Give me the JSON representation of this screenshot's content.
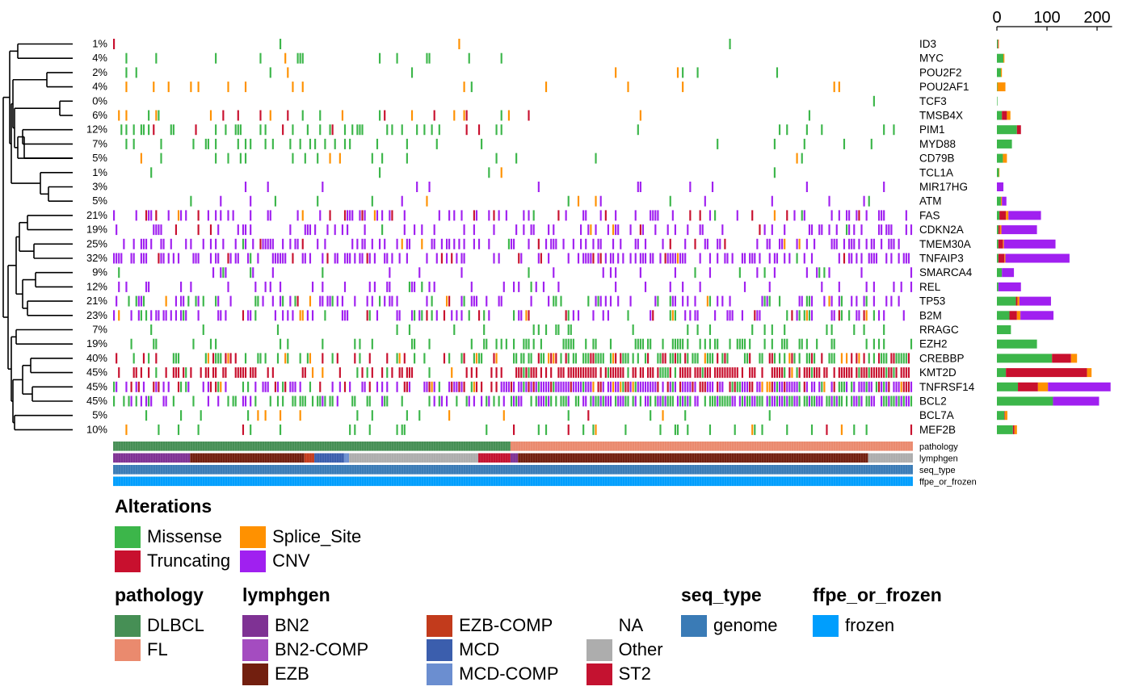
{
  "chart_data": {
    "type": "oncoplot",
    "n_samples": 322,
    "genes": [
      {
        "name": "ID3",
        "pct": "1%",
        "counts": {
          "Missense": 2,
          "Truncating": 1,
          "Splice_Site": 1,
          "CNV": 0
        }
      },
      {
        "name": "MYC",
        "pct": "4%",
        "counts": {
          "Missense": 13,
          "Truncating": 0,
          "Splice_Site": 2,
          "CNV": 0
        }
      },
      {
        "name": "POU2F2",
        "pct": "2%",
        "counts": {
          "Missense": 8,
          "Truncating": 0,
          "Splice_Site": 2,
          "CNV": 0
        }
      },
      {
        "name": "POU2AF1",
        "pct": "4%",
        "counts": {
          "Missense": 1,
          "Truncating": 0,
          "Splice_Site": 16,
          "CNV": 0
        }
      },
      {
        "name": "TCF3",
        "pct": "0%",
        "counts": {
          "Missense": 1,
          "Truncating": 0,
          "Splice_Site": 0,
          "CNV": 0
        }
      },
      {
        "name": "TMSB4X",
        "pct": "6%",
        "counts": {
          "Missense": 10,
          "Truncating": 10,
          "Splice_Site": 7,
          "CNV": 0
        }
      },
      {
        "name": "PIM1",
        "pct": "12%",
        "counts": {
          "Missense": 40,
          "Truncating": 8,
          "Splice_Site": 0,
          "CNV": 0
        }
      },
      {
        "name": "MYD88",
        "pct": "7%",
        "counts": {
          "Missense": 30,
          "Truncating": 0,
          "Splice_Site": 0,
          "CNV": 0
        }
      },
      {
        "name": "CD79B",
        "pct": "5%",
        "counts": {
          "Missense": 12,
          "Truncating": 0,
          "Splice_Site": 8,
          "CNV": 0
        }
      },
      {
        "name": "TCL1A",
        "pct": "1%",
        "counts": {
          "Missense": 4,
          "Truncating": 0,
          "Splice_Site": 1,
          "CNV": 0
        }
      },
      {
        "name": "MIR17HG",
        "pct": "3%",
        "counts": {
          "Missense": 0,
          "Truncating": 0,
          "Splice_Site": 0,
          "CNV": 13
        }
      },
      {
        "name": "ATM",
        "pct": "5%",
        "counts": {
          "Missense": 8,
          "Truncating": 0,
          "Splice_Site": 2,
          "CNV": 9
        }
      },
      {
        "name": "FAS",
        "pct": "21%",
        "counts": {
          "Missense": 5,
          "Truncating": 13,
          "Splice_Site": 5,
          "CNV": 65
        }
      },
      {
        "name": "CDKN2A",
        "pct": "19%",
        "counts": {
          "Missense": 3,
          "Truncating": 3,
          "Splice_Site": 3,
          "CNV": 71
        }
      },
      {
        "name": "TMEM30A",
        "pct": "25%",
        "counts": {
          "Missense": 3,
          "Truncating": 9,
          "Splice_Site": 2,
          "CNV": 103
        }
      },
      {
        "name": "TNFAIP3",
        "pct": "32%",
        "counts": {
          "Missense": 3,
          "Truncating": 12,
          "Splice_Site": 2,
          "CNV": 128
        }
      },
      {
        "name": "SMARCA4",
        "pct": "9%",
        "counts": {
          "Missense": 10,
          "Truncating": 0,
          "Splice_Site": 0,
          "CNV": 24
        }
      },
      {
        "name": "REL",
        "pct": "12%",
        "counts": {
          "Missense": 3,
          "Truncating": 0,
          "Splice_Site": 0,
          "CNV": 45
        }
      },
      {
        "name": "TP53",
        "pct": "21%",
        "counts": {
          "Missense": 38,
          "Truncating": 3,
          "Splice_Site": 4,
          "CNV": 63
        }
      },
      {
        "name": "B2M",
        "pct": "23%",
        "counts": {
          "Missense": 25,
          "Truncating": 15,
          "Splice_Site": 7,
          "CNV": 66
        }
      },
      {
        "name": "RRAGC",
        "pct": "7%",
        "counts": {
          "Missense": 28,
          "Truncating": 0,
          "Splice_Site": 0,
          "CNV": 0
        }
      },
      {
        "name": "EZH2",
        "pct": "19%",
        "counts": {
          "Missense": 80,
          "Truncating": 0,
          "Splice_Site": 0,
          "CNV": 0
        }
      },
      {
        "name": "CREBBP",
        "pct": "40%",
        "counts": {
          "Missense": 110,
          "Truncating": 38,
          "Splice_Site": 12,
          "CNV": 0
        }
      },
      {
        "name": "KMT2D",
        "pct": "45%",
        "counts": {
          "Missense": 18,
          "Truncating": 162,
          "Splice_Site": 9,
          "CNV": 0
        }
      },
      {
        "name": "TNFRSF14",
        "pct": "45%",
        "counts": {
          "Missense": 42,
          "Truncating": 40,
          "Splice_Site": 20,
          "CNV": 125
        }
      },
      {
        "name": "BCL2",
        "pct": "45%",
        "counts": {
          "Missense": 112,
          "Truncating": 0,
          "Splice_Site": 0,
          "CNV": 92
        }
      },
      {
        "name": "BCL7A",
        "pct": "5%",
        "counts": {
          "Missense": 15,
          "Truncating": 1,
          "Splice_Site": 5,
          "CNV": 0
        }
      },
      {
        "name": "MEF2B",
        "pct": "10%",
        "counts": {
          "Missense": 32,
          "Truncating": 3,
          "Splice_Site": 5,
          "CNV": 0
        }
      }
    ],
    "bar_axis": {
      "ticks": [
        0,
        100,
        200
      ],
      "max": 230
    },
    "alteration_colors": {
      "Missense": "#3cb64a",
      "Truncating": "#c8102e",
      "Splice_Site": "#ff9100",
      "CNV": "#a020f0"
    },
    "annotation_tracks": [
      {
        "name": "pathology",
        "segments": [
          {
            "value": "DLBCL",
            "from": 0,
            "to": 160
          },
          {
            "value": "FL",
            "from": 160,
            "to": 322
          }
        ]
      },
      {
        "name": "lymphgen",
        "segments": [
          {
            "value": "BN2",
            "from": 0,
            "to": 31
          },
          {
            "value": "EZB",
            "from": 31,
            "to": 77
          },
          {
            "value": "EZB-COMP",
            "from": 77,
            "to": 81
          },
          {
            "value": "MCD",
            "from": 81,
            "to": 93
          },
          {
            "value": "MCD-COMP",
            "from": 93,
            "to": 95
          },
          {
            "value": "Other",
            "from": 95,
            "to": 147
          },
          {
            "value": "ST2",
            "from": 147,
            "to": 160
          },
          {
            "value": "BN2",
            "from": 160,
            "to": 163
          },
          {
            "value": "EZB",
            "from": 163,
            "to": 304
          },
          {
            "value": "Other",
            "from": 304,
            "to": 322
          }
        ]
      },
      {
        "name": "seq_type",
        "segments": [
          {
            "value": "genome",
            "from": 0,
            "to": 322
          }
        ]
      },
      {
        "name": "ffpe_or_frozen",
        "segments": [
          {
            "value": "frozen",
            "from": 0,
            "to": 322
          }
        ]
      }
    ],
    "annotation_colors": {
      "DLBCL": "#468f55",
      "FL": "#ea8a6e",
      "BN2": "#7f3294",
      "BN2-COMP": "#a44cc0",
      "EZB": "#721f0f",
      "EZB-COMP": "#c23b1c",
      "MCD": "#3b5ead",
      "MCD-COMP": "#6b8ed0",
      "Other": "#adadad",
      "ST2": "#c41230",
      "genome": "#3a7bb6",
      "frozen": "#009efd"
    }
  },
  "legends": {
    "alterations": {
      "title": "Alterations",
      "items": [
        {
          "label": "Missense",
          "color": "#3cb64a"
        },
        {
          "label": "Splice_Site",
          "color": "#ff9100"
        },
        {
          "label": "Truncating",
          "color": "#c8102e"
        },
        {
          "label": "CNV",
          "color": "#a020f0"
        }
      ]
    },
    "pathology": {
      "title": "pathology",
      "items": [
        {
          "label": "DLBCL",
          "color": "#468f55"
        },
        {
          "label": "FL",
          "color": "#ea8a6e"
        }
      ]
    },
    "lymphgen": {
      "title": "lymphgen",
      "columns": [
        [
          {
            "label": "BN2",
            "color": "#7f3294"
          },
          {
            "label": "BN2-COMP",
            "color": "#a44cc0"
          },
          {
            "label": "EZB",
            "color": "#721f0f"
          }
        ],
        [
          {
            "label": "EZB-COMP",
            "color": "#c23b1c"
          },
          {
            "label": "MCD",
            "color": "#3b5ead"
          },
          {
            "label": "MCD-COMP",
            "color": "#6b8ed0"
          }
        ],
        [
          {
            "label": "NA",
            "color": "#ffffff"
          },
          {
            "label": "Other",
            "color": "#adadad"
          },
          {
            "label": "ST2",
            "color": "#c41230"
          }
        ]
      ]
    },
    "seq_type": {
      "title": "seq_type",
      "items": [
        {
          "label": "genome",
          "color": "#3a7bb6"
        }
      ]
    },
    "ffpe_or_frozen": {
      "title": "ffpe_or_frozen",
      "items": [
        {
          "label": "frozen",
          "color": "#009efd"
        }
      ]
    }
  }
}
